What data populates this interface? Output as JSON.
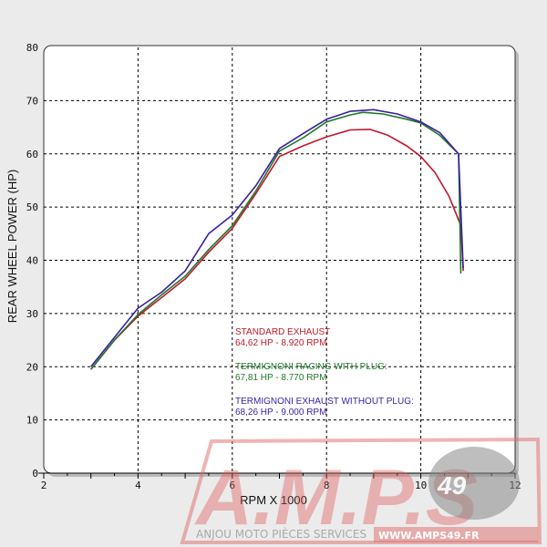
{
  "chart_data": {
    "type": "line",
    "xlabel": "RPM X 1000",
    "ylabel": "REAR WHEEL POWER (HP)",
    "xlim": [
      2,
      12
    ],
    "ylim": [
      0,
      80
    ],
    "xticks": [
      2,
      4,
      6,
      8,
      10,
      12
    ],
    "yticks": [
      0,
      10,
      20,
      30,
      40,
      50,
      60,
      70,
      80
    ],
    "grid": true,
    "series": [
      {
        "color": "#c0182a",
        "points": [
          [
            3.0,
            19.5
          ],
          [
            3.5,
            25
          ],
          [
            4.0,
            29.5
          ],
          [
            4.5,
            33
          ],
          [
            5.0,
            36.5
          ],
          [
            5.5,
            41.5
          ],
          [
            6.0,
            46
          ],
          [
            6.5,
            52.5
          ],
          [
            7.0,
            59.5
          ],
          [
            7.5,
            61.5
          ],
          [
            8.0,
            63.2
          ],
          [
            8.5,
            64.5
          ],
          [
            8.92,
            64.6
          ],
          [
            9.3,
            63.5
          ],
          [
            9.7,
            61.5
          ],
          [
            10.0,
            59.5
          ],
          [
            10.3,
            56.5
          ],
          [
            10.6,
            52
          ],
          [
            10.85,
            46.5
          ],
          [
            10.9,
            38
          ]
        ]
      },
      {
        "color": "#1f7a2a",
        "points": [
          [
            3.0,
            19.5
          ],
          [
            3.5,
            25
          ],
          [
            4.0,
            29.8
          ],
          [
            4.5,
            33.5
          ],
          [
            5.0,
            37
          ],
          [
            5.5,
            42
          ],
          [
            6.0,
            46.5
          ],
          [
            6.5,
            53
          ],
          [
            7.0,
            60.5
          ],
          [
            7.5,
            63
          ],
          [
            8.0,
            66
          ],
          [
            8.5,
            67.3
          ],
          [
            8.77,
            67.8
          ],
          [
            9.2,
            67.5
          ],
          [
            9.7,
            66.5
          ],
          [
            10.0,
            65.8
          ],
          [
            10.4,
            63.5
          ],
          [
            10.8,
            60
          ],
          [
            10.85,
            37.5
          ]
        ]
      },
      {
        "color": "#3a1fa0",
        "points": [
          [
            3.0,
            20
          ],
          [
            3.5,
            25.5
          ],
          [
            4.0,
            31
          ],
          [
            4.5,
            34
          ],
          [
            5.0,
            38
          ],
          [
            5.5,
            45
          ],
          [
            6.0,
            48.5
          ],
          [
            6.5,
            54
          ],
          [
            7.0,
            61
          ],
          [
            7.5,
            63.8
          ],
          [
            8.0,
            66.5
          ],
          [
            8.5,
            68
          ],
          [
            9.0,
            68.3
          ],
          [
            9.5,
            67.5
          ],
          [
            10.0,
            66
          ],
          [
            10.4,
            64
          ],
          [
            10.8,
            60
          ],
          [
            10.9,
            38.5
          ]
        ]
      }
    ],
    "annotations": [
      {
        "line1": "STANDARD EXHAUST",
        "line2": "64,62 HP - 8.920 RPM",
        "color": "#c0182a"
      },
      {
        "line1": "TERMIGNONI RACING WITH PLUG:",
        "line2": "67,81 HP - 8.770 RPM",
        "color": "#1f7a2a"
      },
      {
        "line1": "TERMIGNONI EXHAUST WITHOUT PLUG:",
        "line2": "68,26 HP - 9.000 RPM",
        "color": "#3a1fa0"
      }
    ]
  },
  "watermark": {
    "logo": "A.M.P.S",
    "number": "49",
    "tagline": "ANJOU MOTO PIÈCES SERVICES",
    "url": "WWW.AMPS49.FR"
  }
}
